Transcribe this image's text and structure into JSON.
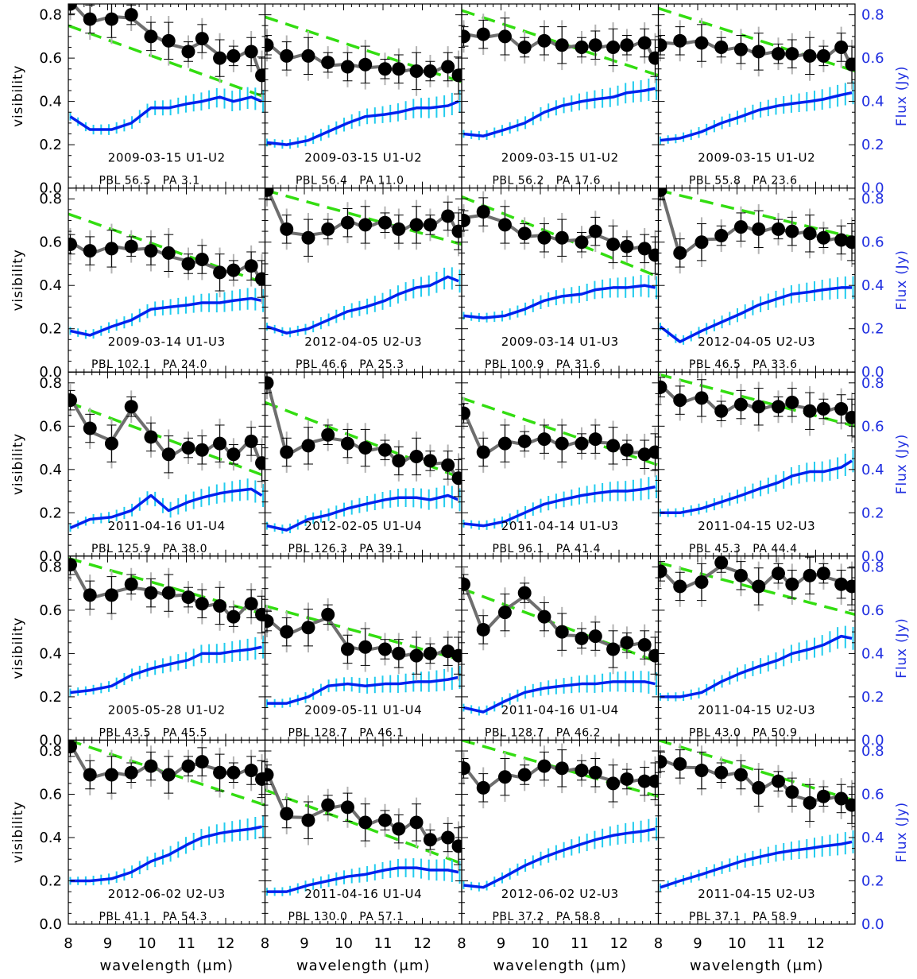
{
  "figure": {
    "ylabel_left": "visibility",
    "ylabel_right": "Flux (Jy)",
    "xlabel": "wavelength (μm)",
    "x_ticks": [
      "8",
      "9",
      "10",
      "11",
      "12"
    ],
    "y_ticks": [
      "0.0",
      "0.2",
      "0.4",
      "0.6",
      "0.8"
    ],
    "colors": {
      "points": "#000000",
      "model_line": "#6e6e6e",
      "dashed_fit": "#33dd11",
      "flux_line": "#0022ee",
      "flux_error": "#22ccee",
      "right_axis": "#1f2ee0"
    }
  },
  "chart_data": [
    {
      "type": "line",
      "panel": 1,
      "date_baseline": "2009-03-15 U1-U2",
      "pbl_label": "PBL 56.5",
      "pa_label": "PA 3.1",
      "x_range": [
        8.0,
        13.0
      ],
      "y_range": [
        0.0,
        0.85
      ],
      "dashed_fit": [
        0.75,
        0.42
      ],
      "visibility": [
        0.85,
        0.78,
        0.78,
        0.8,
        0.7,
        0.68,
        0.63,
        0.69,
        0.6,
        0.61,
        0.63,
        0.52
      ],
      "flux": [
        0.33,
        0.27,
        0.27,
        0.3,
        0.37,
        0.37,
        0.39,
        0.4,
        0.42,
        0.4,
        0.42,
        0.4
      ]
    },
    {
      "type": "line",
      "panel": 2,
      "date_baseline": "2009-03-15 U1-U2",
      "pbl_label": "PBL 56.4",
      "pa_label": "PA 11.0",
      "x_range": [
        8.0,
        13.0
      ],
      "y_range": [
        0.0,
        0.85
      ],
      "dashed_fit": [
        0.79,
        0.49
      ],
      "visibility": [
        0.66,
        0.61,
        0.61,
        0.58,
        0.56,
        0.57,
        0.55,
        0.55,
        0.54,
        0.54,
        0.56,
        0.52
      ],
      "flux": [
        0.21,
        0.2,
        0.22,
        0.26,
        0.3,
        0.33,
        0.34,
        0.35,
        0.37,
        0.37,
        0.38,
        0.4
      ]
    },
    {
      "type": "line",
      "panel": 3,
      "date_baseline": "2009-03-15 U1-U2",
      "pbl_label": "PBL 56.2",
      "pa_label": "PA 17.6",
      "x_range": [
        8.0,
        13.0
      ],
      "y_range": [
        0.0,
        0.85
      ],
      "dashed_fit": [
        0.82,
        0.52
      ],
      "visibility": [
        0.7,
        0.71,
        0.7,
        0.65,
        0.68,
        0.66,
        0.65,
        0.66,
        0.65,
        0.66,
        0.67,
        0.6
      ],
      "flux": [
        0.25,
        0.24,
        0.27,
        0.3,
        0.35,
        0.38,
        0.4,
        0.41,
        0.42,
        0.44,
        0.45,
        0.46
      ]
    },
    {
      "type": "line",
      "panel": 4,
      "date_baseline": "2009-03-15 U1-U2",
      "pbl_label": "PBL 55.8",
      "pa_label": "PA 23.6",
      "x_range": [
        8.0,
        13.0
      ],
      "y_range": [
        0.0,
        0.85
      ],
      "dashed_fit": [
        0.83,
        0.54
      ],
      "visibility": [
        0.66,
        0.68,
        0.67,
        0.65,
        0.64,
        0.63,
        0.62,
        0.62,
        0.61,
        0.61,
        0.65,
        0.57
      ],
      "flux": [
        0.22,
        0.23,
        0.26,
        0.3,
        0.33,
        0.36,
        0.38,
        0.39,
        0.4,
        0.41,
        0.43,
        0.44
      ]
    },
    {
      "type": "line",
      "panel": 5,
      "date_baseline": "2009-03-14 U1-U3",
      "pbl_label": "PBL 102.1",
      "pa_label": "PA 24.0",
      "x_range": [
        8.0,
        13.0
      ],
      "y_range": [
        0.0,
        0.85
      ],
      "dashed_fit": [
        0.73,
        0.41
      ],
      "visibility": [
        0.59,
        0.56,
        0.57,
        0.58,
        0.56,
        0.55,
        0.5,
        0.52,
        0.46,
        0.47,
        0.49,
        0.43
      ],
      "flux": [
        0.19,
        0.17,
        0.21,
        0.24,
        0.29,
        0.3,
        0.31,
        0.32,
        0.32,
        0.33,
        0.34,
        0.33
      ]
    },
    {
      "type": "line",
      "panel": 6,
      "date_baseline": "2012-04-05 U2-U3",
      "pbl_label": "PBL 46.6",
      "pa_label": "PA 25.3",
      "x_range": [
        8.0,
        13.0
      ],
      "y_range": [
        0.0,
        0.85
      ],
      "dashed_fit": [
        0.84,
        0.59
      ],
      "visibility": [
        0.84,
        0.66,
        0.62,
        0.66,
        0.69,
        0.68,
        0.69,
        0.66,
        0.68,
        0.68,
        0.72,
        0.65
      ],
      "flux": [
        0.21,
        0.18,
        0.2,
        0.24,
        0.28,
        0.3,
        0.33,
        0.36,
        0.39,
        0.4,
        0.44,
        0.42
      ]
    },
    {
      "type": "line",
      "panel": 7,
      "date_baseline": "2009-03-14 U1-U3",
      "pbl_label": "PBL 100.9",
      "pa_label": "PA 31.6",
      "x_range": [
        8.0,
        13.0
      ],
      "y_range": [
        0.0,
        0.85
      ],
      "dashed_fit": [
        0.81,
        0.44
      ],
      "visibility": [
        0.7,
        0.74,
        0.68,
        0.64,
        0.62,
        0.62,
        0.6,
        0.65,
        0.59,
        0.58,
        0.57,
        0.54
      ],
      "flux": [
        0.26,
        0.25,
        0.26,
        0.29,
        0.33,
        0.35,
        0.36,
        0.38,
        0.39,
        0.39,
        0.4,
        0.39
      ]
    },
    {
      "type": "line",
      "panel": 8,
      "date_baseline": "2012-04-05 U2-U3",
      "pbl_label": "PBL 46.5",
      "pa_label": "PA 33.6",
      "x_range": [
        8.0,
        13.0
      ],
      "y_range": [
        0.0,
        0.85
      ],
      "dashed_fit": [
        0.84,
        0.62
      ],
      "visibility": [
        0.84,
        0.55,
        0.6,
        0.63,
        0.67,
        0.66,
        0.66,
        0.65,
        0.64,
        0.62,
        0.61,
        0.6
      ],
      "flux": [
        0.21,
        0.14,
        0.19,
        0.23,
        0.27,
        0.31,
        0.34,
        0.36,
        0.37,
        0.38,
        0.39,
        0.39
      ]
    },
    {
      "type": "line",
      "panel": 9,
      "date_baseline": "2011-04-16 U1-U4",
      "pbl_label": "PBL 125.9",
      "pa_label": "PA 38.0",
      "x_range": [
        8.0,
        13.0
      ],
      "y_range": [
        0.0,
        0.85
      ],
      "dashed_fit": [
        0.71,
        0.37
      ],
      "visibility": [
        0.72,
        0.59,
        0.52,
        0.69,
        0.55,
        0.47,
        0.5,
        0.49,
        0.52,
        0.47,
        0.53,
        0.43
      ],
      "flux": [
        0.13,
        0.17,
        0.18,
        0.21,
        0.28,
        0.21,
        0.25,
        0.27,
        0.29,
        0.3,
        0.31,
        0.28
      ]
    },
    {
      "type": "line",
      "panel": 10,
      "date_baseline": "2012-02-05 U1-U4",
      "pbl_label": "PBL 126.3",
      "pa_label": "PA 39.1",
      "x_range": [
        8.0,
        13.0
      ],
      "y_range": [
        0.0,
        0.85
      ],
      "dashed_fit": [
        0.71,
        0.36
      ],
      "visibility": [
        0.8,
        0.48,
        0.51,
        0.56,
        0.52,
        0.5,
        0.49,
        0.44,
        0.46,
        0.44,
        0.42,
        0.36
      ],
      "flux": [
        0.14,
        0.12,
        0.17,
        0.19,
        0.22,
        0.24,
        0.26,
        0.27,
        0.27,
        0.26,
        0.28,
        0.26
      ]
    },
    {
      "type": "line",
      "panel": 11,
      "date_baseline": "2011-04-14 U1-U3",
      "pbl_label": "PBL 96.1",
      "pa_label": "PA 41.4",
      "x_range": [
        8.0,
        13.0
      ],
      "y_range": [
        0.0,
        0.85
      ],
      "dashed_fit": [
        0.73,
        0.42
      ],
      "visibility": [
        0.66,
        0.48,
        0.52,
        0.53,
        0.54,
        0.52,
        0.52,
        0.54,
        0.51,
        0.49,
        0.47,
        0.48
      ],
      "flux": [
        0.15,
        0.14,
        0.16,
        0.2,
        0.24,
        0.26,
        0.28,
        0.29,
        0.3,
        0.3,
        0.31,
        0.32
      ]
    },
    {
      "type": "line",
      "panel": 12,
      "date_baseline": "2011-04-15 U2-U3",
      "pbl_label": "PBL 45.3",
      "pa_label": "PA 44.4",
      "x_range": [
        8.0,
        13.0
      ],
      "y_range": [
        0.0,
        0.85
      ],
      "dashed_fit": [
        0.84,
        0.6
      ],
      "visibility": [
        0.78,
        0.72,
        0.73,
        0.67,
        0.7,
        0.69,
        0.69,
        0.71,
        0.67,
        0.68,
        0.68,
        0.64
      ],
      "flux": [
        0.2,
        0.2,
        0.22,
        0.25,
        0.28,
        0.31,
        0.34,
        0.37,
        0.39,
        0.39,
        0.41,
        0.44
      ]
    },
    {
      "type": "line",
      "panel": 13,
      "date_baseline": "2005-05-28 U1-U2",
      "pbl_label": "PBL 43.5",
      "pa_label": "PA 45.5",
      "x_range": [
        8.0,
        13.0
      ],
      "y_range": [
        0.0,
        0.85
      ],
      "dashed_fit": [
        0.84,
        0.58
      ],
      "visibility": [
        0.81,
        0.67,
        0.67,
        0.72,
        0.68,
        0.68,
        0.66,
        0.63,
        0.62,
        0.57,
        0.63,
        0.58
      ],
      "flux": [
        0.22,
        0.23,
        0.25,
        0.3,
        0.33,
        0.35,
        0.37,
        0.4,
        0.4,
        0.41,
        0.42,
        0.43
      ]
    },
    {
      "type": "line",
      "panel": 14,
      "date_baseline": "2009-05-11 U1-U4",
      "pbl_label": "PBL 128.7",
      "pa_label": "PA 46.1",
      "x_range": [
        8.0,
        13.0
      ],
      "y_range": [
        0.0,
        0.85
      ],
      "dashed_fit": [
        0.62,
        0.37
      ],
      "visibility": [
        0.55,
        0.5,
        0.52,
        0.58,
        0.42,
        0.43,
        0.42,
        0.4,
        0.39,
        0.4,
        0.41,
        0.39
      ],
      "flux": [
        0.17,
        0.17,
        0.2,
        0.25,
        0.26,
        0.25,
        0.26,
        0.26,
        0.27,
        0.27,
        0.28,
        0.29
      ]
    },
    {
      "type": "line",
      "panel": 15,
      "date_baseline": "2011-04-16 U1-U4",
      "pbl_label": "PBL 128.7",
      "pa_label": "PA 46.2",
      "x_range": [
        8.0,
        13.0
      ],
      "y_range": [
        0.0,
        0.85
      ],
      "dashed_fit": [
        0.7,
        0.36
      ],
      "visibility": [
        0.72,
        0.51,
        0.59,
        0.68,
        0.57,
        0.5,
        0.47,
        0.48,
        0.42,
        0.45,
        0.44,
        0.39
      ],
      "flux": [
        0.15,
        0.13,
        0.18,
        0.22,
        0.24,
        0.25,
        0.26,
        0.26,
        0.27,
        0.27,
        0.27,
        0.26
      ]
    },
    {
      "type": "line",
      "panel": 16,
      "date_baseline": "2011-04-15 U2-U3",
      "pbl_label": "PBL 43.0",
      "pa_label": "PA 50.9",
      "x_range": [
        8.0,
        13.0
      ],
      "y_range": [
        0.0,
        0.85
      ],
      "dashed_fit": [
        0.82,
        0.58
      ],
      "visibility": [
        0.78,
        0.71,
        0.73,
        0.82,
        0.76,
        0.71,
        0.77,
        0.72,
        0.76,
        0.77,
        0.72,
        0.71
      ],
      "flux": [
        0.2,
        0.2,
        0.22,
        0.27,
        0.31,
        0.34,
        0.37,
        0.4,
        0.42,
        0.44,
        0.48,
        0.47
      ]
    },
    {
      "type": "line",
      "panel": 17,
      "date_baseline": "2012-06-02 U2-U3",
      "pbl_label": "PBL 41.1",
      "pa_label": "PA 54.3",
      "x_range": [
        8.0,
        13.0
      ],
      "y_range": [
        0.0,
        0.85
      ],
      "dashed_fit": [
        0.85,
        0.55
      ],
      "visibility": [
        0.82,
        0.69,
        0.69,
        0.7,
        0.73,
        0.69,
        0.73,
        0.75,
        0.7,
        0.7,
        0.71,
        0.67
      ],
      "flux": [
        0.2,
        0.2,
        0.21,
        0.24,
        0.29,
        0.32,
        0.37,
        0.4,
        0.42,
        0.43,
        0.44,
        0.45
      ]
    },
    {
      "type": "line",
      "panel": 18,
      "date_baseline": "2011-04-16 U1-U4",
      "pbl_label": "PBL 130.0",
      "pa_label": "PA 57.1",
      "x_range": [
        8.0,
        13.0
      ],
      "y_range": [
        0.0,
        0.85
      ],
      "dashed_fit": [
        0.62,
        0.28
      ],
      "visibility": [
        0.69,
        0.51,
        0.48,
        0.55,
        0.54,
        0.47,
        0.48,
        0.44,
        0.47,
        0.39,
        0.4,
        0.36
      ],
      "flux": [
        0.15,
        0.15,
        0.18,
        0.2,
        0.22,
        0.23,
        0.25,
        0.26,
        0.26,
        0.25,
        0.25,
        0.24
      ]
    },
    {
      "type": "line",
      "panel": 19,
      "date_baseline": "2012-06-02 U2-U3",
      "pbl_label": "PBL 37.2",
      "pa_label": "PA 58.8",
      "x_range": [
        8.0,
        13.0
      ],
      "y_range": [
        0.0,
        0.85
      ],
      "dashed_fit": [
        0.85,
        0.59
      ],
      "visibility": [
        0.72,
        0.63,
        0.68,
        0.69,
        0.73,
        0.72,
        0.71,
        0.7,
        0.65,
        0.67,
        0.66,
        0.66
      ],
      "flux": [
        0.18,
        0.17,
        0.22,
        0.27,
        0.31,
        0.34,
        0.37,
        0.39,
        0.41,
        0.42,
        0.43,
        0.44
      ]
    },
    {
      "type": "line",
      "panel": 20,
      "date_baseline": "2011-04-15 U2-U3",
      "pbl_label": "PBL 37.1",
      "pa_label": "PA 58.9",
      "x_range": [
        8.0,
        13.0
      ],
      "y_range": [
        0.0,
        0.85
      ],
      "dashed_fit": [
        0.85,
        0.57
      ],
      "visibility": [
        0.75,
        0.74,
        0.71,
        0.7,
        0.69,
        0.63,
        0.66,
        0.61,
        0.56,
        0.59,
        0.58,
        0.55
      ],
      "flux": [
        0.17,
        0.2,
        0.23,
        0.26,
        0.29,
        0.31,
        0.33,
        0.34,
        0.35,
        0.36,
        0.37,
        0.38
      ]
    }
  ]
}
